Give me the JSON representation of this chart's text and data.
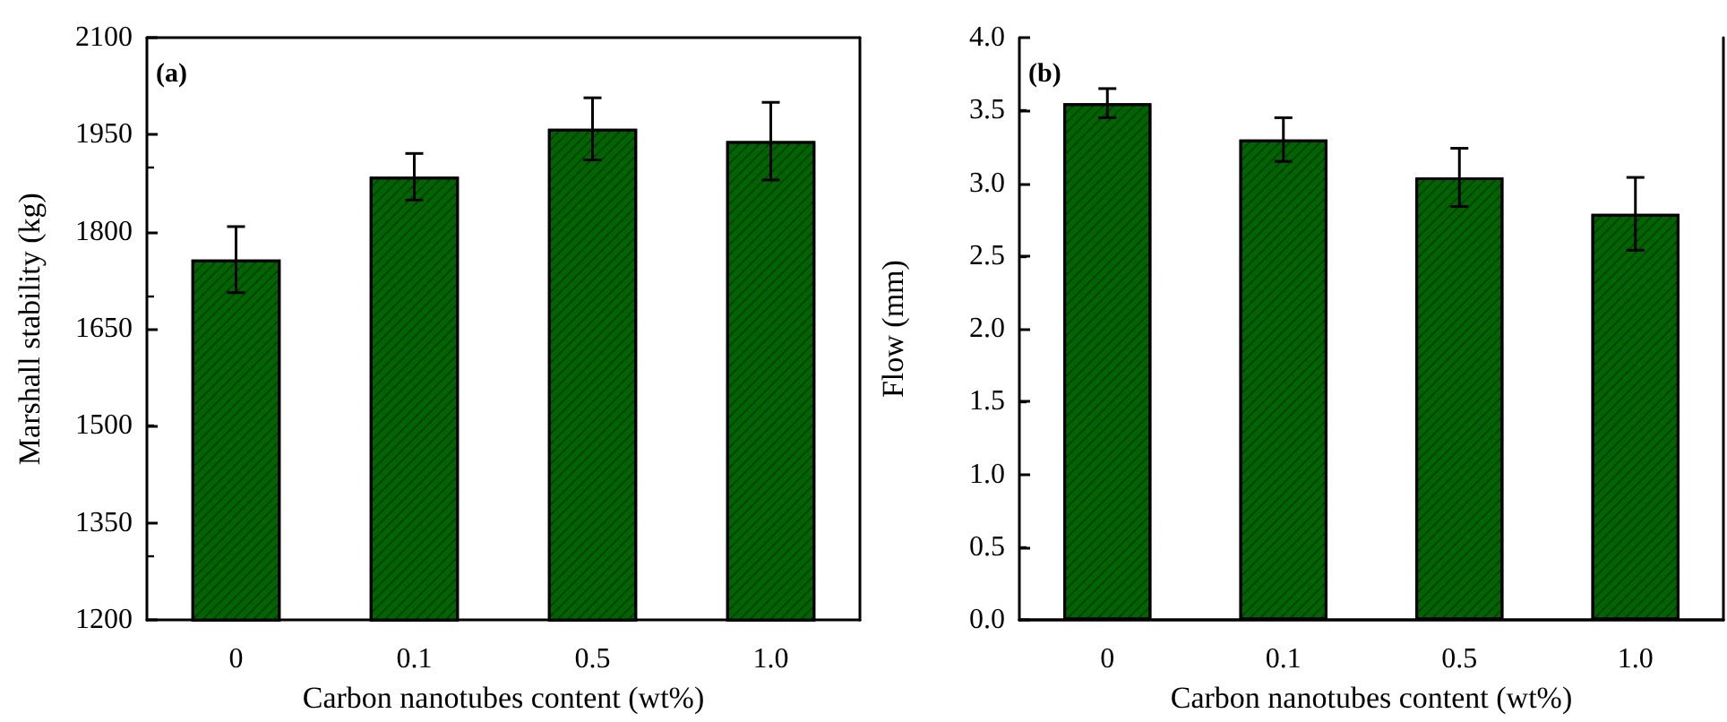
{
  "chart_data": [
    {
      "type": "bar",
      "ylabel": "Marshall stability (kg)",
      "xlabel": "Carbon nanotubes content (wt%)",
      "annotations": [
        "(a)"
      ],
      "categories": [
        "0",
        "0.1",
        "0.5",
        "1.0"
      ],
      "series": [
        {
          "color": "#006400",
          "values": [
            1757,
            1885,
            1959,
            1940
          ],
          "errors": [
            51,
            36,
            48,
            60
          ]
        }
      ],
      "ylim": [
        1200,
        2100
      ],
      "yticks": [
        1200,
        1350,
        1500,
        1650,
        1800,
        1950,
        2100
      ]
    },
    {
      "type": "bar",
      "ylabel": "Flow (mm)",
      "xlabel": "Carbon nanotubes content (wt%)",
      "annotations": [
        "(b)"
      ],
      "categories": [
        "0",
        "0.1",
        "0.5",
        "1.0"
      ],
      "series": [
        {
          "color": "#006400",
          "values": [
            3.55,
            3.3,
            3.04,
            2.79
          ],
          "errors": [
            0.1,
            0.15,
            0.2,
            0.25
          ]
        }
      ],
      "ylim": [
        0,
        4
      ],
      "yticks": [
        {
          "value": 0,
          "label": "0.0"
        },
        {
          "value": 0.5,
          "label": "0.5"
        },
        {
          "value": 1,
          "label": "1.0"
        },
        {
          "value": 1.5,
          "label": "1.5"
        },
        {
          "value": 2,
          "label": "2.0"
        },
        {
          "value": 2.5,
          "label": "2.5"
        },
        {
          "value": 3,
          "label": "3.0"
        },
        {
          "value": 3.5,
          "label": "3.5"
        },
        {
          "value": 4,
          "label": "4.0"
        }
      ]
    }
  ]
}
